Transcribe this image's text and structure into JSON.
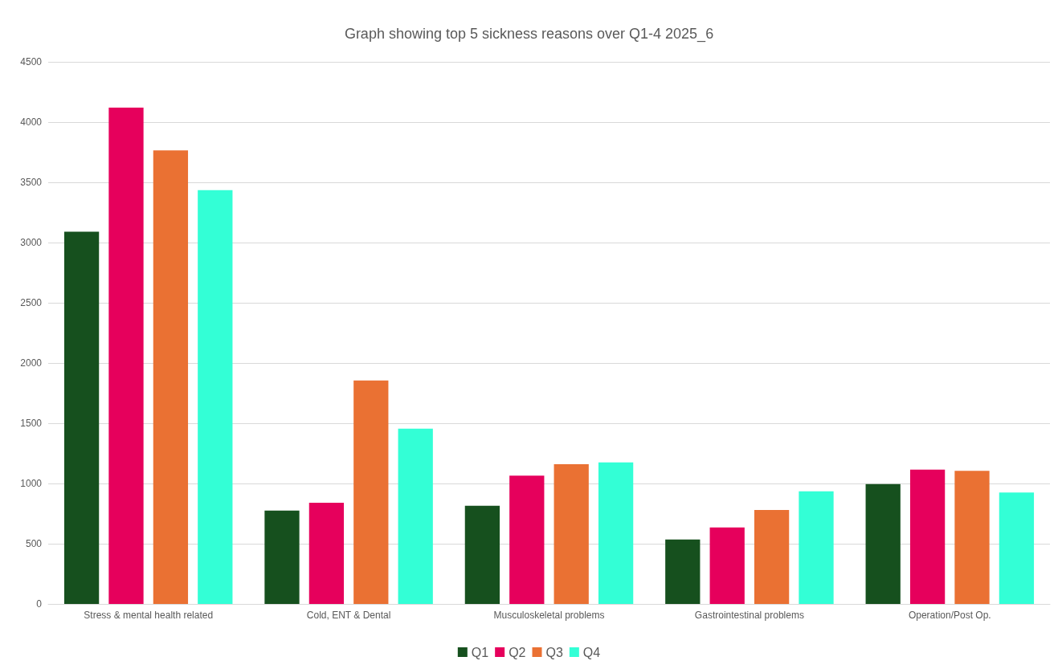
{
  "chart_data": {
    "type": "bar",
    "title": "Graph showing top 5 sickness reasons over Q1-4 2025_6",
    "categories": [
      "Stress & mental health related",
      "Cold, ENT & Dental",
      "Musculoskeletal problems",
      "Gastrointestinal problems",
      "Operation/Post Op."
    ],
    "series": [
      {
        "name": "Q1",
        "color": "#16501e",
        "values": [
          3090,
          775,
          815,
          535,
          995
        ]
      },
      {
        "name": "Q2",
        "color": "#e6005c",
        "values": [
          4120,
          840,
          1065,
          635,
          1115
        ]
      },
      {
        "name": "Q3",
        "color": "#ea7133",
        "values": [
          3765,
          1855,
          1160,
          780,
          1105
        ]
      },
      {
        "name": "Q4",
        "color": "#33ffd6",
        "values": [
          3435,
          1455,
          1175,
          935,
          925
        ]
      }
    ],
    "ylim": [
      0,
      4500
    ],
    "yticks": [
      0,
      500,
      1000,
      1500,
      2000,
      2500,
      3000,
      3500,
      4000,
      4500
    ],
    "grid": "y",
    "legend": "bottom"
  }
}
